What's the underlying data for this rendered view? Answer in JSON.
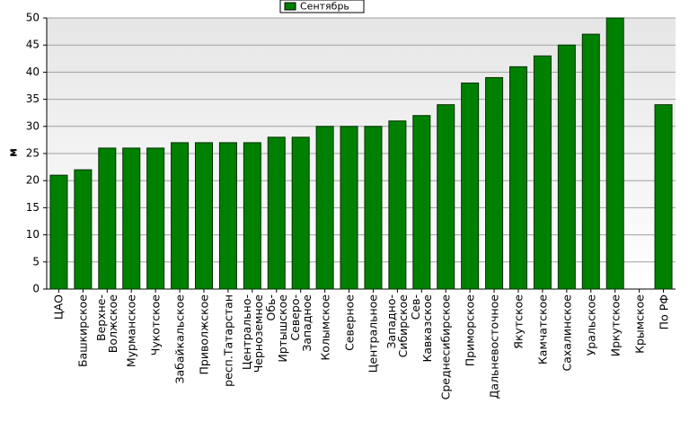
{
  "chart_data": {
    "type": "bar",
    "y_label": "м",
    "categories": [
      "ЦАО",
      "Башкирское",
      "Верхне-\nВолжское",
      "Мурманское",
      "Чукотское",
      "Забайкальское",
      "Приволжское",
      "респ.Татарстан",
      "Центрально-\nЧерноземное",
      "Обь-\nИртышское",
      "Северо-\nЗападное",
      "Колымское",
      "Северное",
      "Центральное",
      "Западно-\nСибирское",
      "Сев-\nКавказское",
      "Среднесибирское",
      "Приморское",
      "Дальневосточное",
      "Якутское",
      "Камчатское",
      "Сахалинское",
      "Уральское",
      "Иркутское",
      "Крымское",
      "По РФ"
    ],
    "series": [
      {
        "name": "Сентябрь",
        "color": "#008000",
        "values": [
          21,
          22,
          26,
          26,
          26,
          27,
          27,
          27,
          27,
          28,
          28,
          30,
          30,
          30,
          31,
          32,
          34,
          38,
          39,
          41,
          43,
          45,
          47,
          50,
          null,
          34
        ]
      }
    ],
    "ylim": [
      0,
      50
    ],
    "yticks": [
      0,
      5,
      10,
      15,
      20,
      25,
      30,
      35,
      40,
      45,
      50
    ],
    "grid": true,
    "legend": "top"
  }
}
